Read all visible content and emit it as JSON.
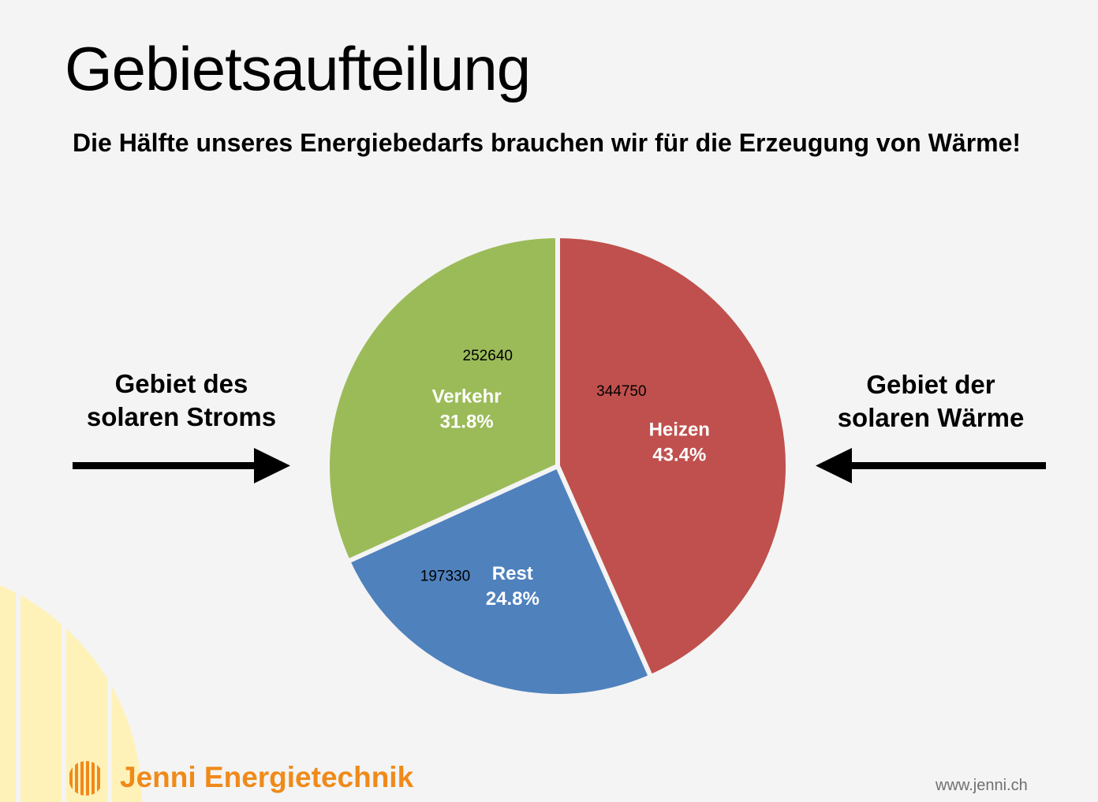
{
  "title": "Gebietsaufteilung",
  "subtitle": "Die Hälfte unseres Energiebedarfs brauchen wir für die Erzeugung von Wärme!",
  "left_label": {
    "line1": "Gebiet des",
    "line2": "solaren Stroms"
  },
  "right_label": {
    "line1": "Gebiet der",
    "line2": "solaren Wärme"
  },
  "brand": "Jenni Energietechnik",
  "url": "www.jenni.ch",
  "colors": {
    "heizen": "#c0504d",
    "rest": "#4f81bd",
    "verkehr": "#9bbb59",
    "brand": "#ef8a1a",
    "deco": "#fff2b8"
  },
  "icons": {
    "left_arrow": "arrow-right-icon",
    "right_arrow": "arrow-left-icon",
    "logo": "jenni-sun-logo-icon"
  },
  "chart_data": {
    "type": "pie",
    "title": "",
    "slices": [
      {
        "label": "Heizen",
        "value": 344750,
        "percent": "43.4%",
        "color": "#c0504d"
      },
      {
        "label": "Rest",
        "value": 197330,
        "percent": "24.8%",
        "color": "#4f81bd"
      },
      {
        "label": "Verkehr",
        "value": 252640,
        "percent": "31.8%",
        "color": "#9bbb59"
      }
    ],
    "start_angle_deg": 0,
    "direction": "clockwise",
    "legend": "none"
  }
}
